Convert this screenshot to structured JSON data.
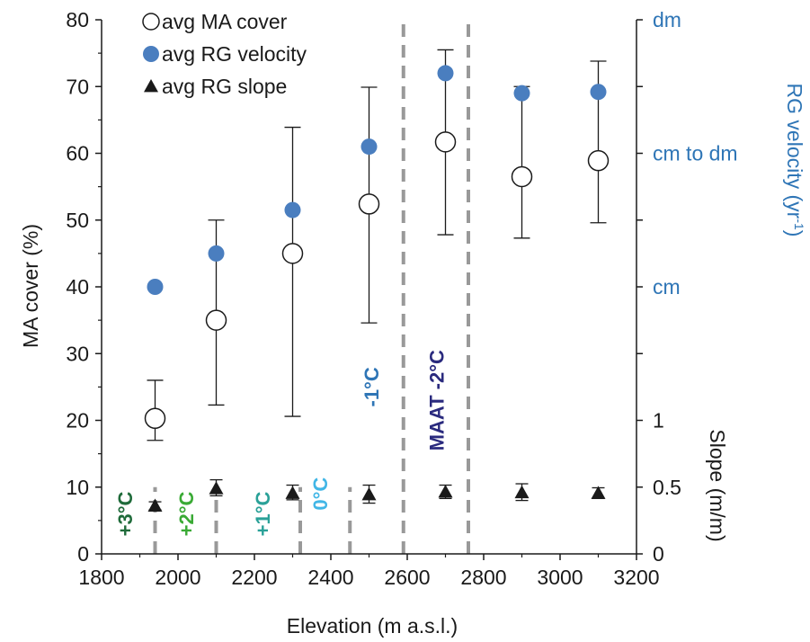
{
  "chart_data": {
    "type": "scatter",
    "xlabel": "Elevation (m a.s.l.)",
    "ylabel": "MA cover (%)",
    "right_label_top": "RG velocity (yr",
    "right_label_top_sup": "-1",
    "right_label_top_close": ")",
    "right_label_bottom": "Slope (m/m)",
    "xlim": [
      1800,
      3200
    ],
    "ylim": [
      0,
      80
    ],
    "x_ticks": [
      "1800",
      "2000",
      "2200",
      "2400",
      "2600",
      "2800",
      "3000",
      "3200"
    ],
    "y_ticks": [
      "0",
      "10",
      "20",
      "30",
      "40",
      "50",
      "60",
      "70",
      "80"
    ],
    "legend_position": "top-left",
    "grid": false,
    "right_ticks_velocity": [
      {
        "label": "dm",
        "y": 80
      },
      {
        "label": "cm to dm",
        "y": 60
      },
      {
        "label": "cm",
        "y": 40
      }
    ],
    "right_ticks_slope": [
      {
        "label": "1",
        "y": 20
      },
      {
        "label": "0.5",
        "y": 10
      },
      {
        "label": "0",
        "y": 0
      }
    ],
    "colors": {
      "velocity": "#4a7ebf",
      "axis": "#1a1a1a",
      "dash": "#999999",
      "right_label": "#2e75b6",
      "plus3": "#1f6b3a",
      "plus2": "#3aaa35",
      "plus1": "#2aa198",
      "zero": "#41b6e6",
      "minus1": "#2e75b6",
      "minus2": "#2a2a7e"
    },
    "series": [
      {
        "name": "avg MA cover",
        "marker": "open-circle",
        "x": [
          1940,
          2100,
          2300,
          2500,
          2700,
          2900,
          3100
        ],
        "y": [
          20.3,
          35,
          45,
          52.4,
          61.7,
          56.5,
          58.9
        ],
        "err_low": [
          17,
          22.3,
          20.6,
          34.6,
          47.8,
          47.3,
          49.6
        ],
        "err_high": [
          26,
          50,
          63.9,
          69.9,
          75.5,
          70,
          73.8
        ]
      },
      {
        "name": "avg RG velocity",
        "marker": "filled-circle",
        "x": [
          1940,
          2100,
          2300,
          2500,
          2700,
          2900,
          3100
        ],
        "y": [
          40,
          45,
          51.5,
          61,
          72,
          69,
          69.2
        ]
      },
      {
        "name": "avg RG slope",
        "marker": "triangle",
        "x": [
          1940,
          2100,
          2300,
          2500,
          2700,
          2900,
          3100
        ],
        "y": [
          7.2,
          9.8,
          9.1,
          8.9,
          9.3,
          9.2,
          9.1
        ],
        "err_low": [
          6.6,
          8.7,
          8.1,
          7.6,
          8.3,
          8,
          8.3
        ],
        "err_high": [
          7.8,
          11.1,
          10.3,
          10.3,
          10.3,
          10.5,
          9.9
        ]
      }
    ],
    "isotherms": [
      {
        "label": "+3°C",
        "x": 1940,
        "y_bottom": 0,
        "y_top": 10,
        "label_x": 1880,
        "label_y": 6,
        "color_key": "plus3"
      },
      {
        "label": "+2°C",
        "x": 2100,
        "y_bottom": 0,
        "y_top": 10,
        "label_x": 2040,
        "label_y": 6,
        "color_key": "plus2"
      },
      {
        "label": "+1°C",
        "x": 2320,
        "y_bottom": 0,
        "y_top": 10,
        "label_x": 2240,
        "label_y": 6,
        "color_key": "plus1"
      },
      {
        "label": "0°C",
        "x": 2450,
        "y_bottom": 0,
        "y_top": 10,
        "label_x": 2390,
        "label_y": 9,
        "color_key": "zero"
      },
      {
        "label": "-1°C",
        "x": 2590,
        "y_bottom": 0,
        "y_top": 80,
        "label_x": 2525,
        "label_y": 25,
        "color_key": "minus1"
      },
      {
        "label": "MAAT -2°C",
        "x": 2760,
        "y_bottom": 0,
        "y_top": 80,
        "label_x": 2695,
        "label_y": 23,
        "color_key": "minus2"
      }
    ]
  }
}
